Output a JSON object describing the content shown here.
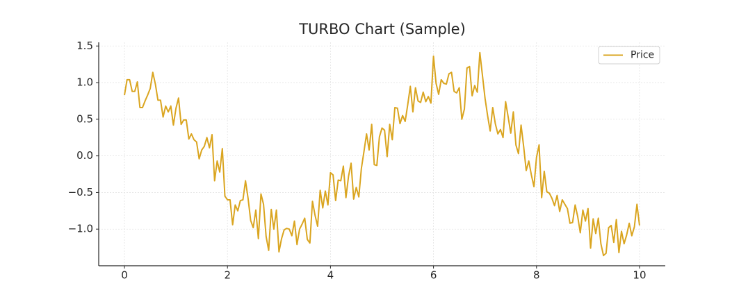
{
  "chart_data": {
    "type": "line",
    "title": "TURBO Chart (Sample)",
    "x": [
      0,
      0.05,
      0.1,
      0.15,
      0.2,
      0.25,
      0.3,
      0.35,
      0.4,
      0.45,
      0.5,
      0.55,
      0.6,
      0.65,
      0.7,
      0.75,
      0.8,
      0.85,
      0.9,
      0.95,
      1,
      1.05,
      1.1,
      1.15,
      1.2,
      1.25,
      1.3,
      1.35,
      1.4,
      1.45,
      1.5,
      1.55,
      1.6,
      1.65,
      1.7,
      1.75,
      1.8,
      1.85,
      1.9,
      1.95,
      2,
      2.05,
      2.1,
      2.15,
      2.2,
      2.25,
      2.3,
      2.35,
      2.4,
      2.45,
      2.5,
      2.55,
      2.6,
      2.65,
      2.7,
      2.75,
      2.8,
      2.85,
      2.9,
      2.95,
      3,
      3.05,
      3.1,
      3.15,
      3.2,
      3.25,
      3.3,
      3.35,
      3.4,
      3.45,
      3.5,
      3.55,
      3.6,
      3.65,
      3.7,
      3.75,
      3.8,
      3.85,
      3.9,
      3.95,
      4,
      4.05,
      4.1,
      4.15,
      4.2,
      4.25,
      4.3,
      4.35,
      4.4,
      4.45,
      4.5,
      4.55,
      4.6,
      4.65,
      4.7,
      4.75,
      4.8,
      4.85,
      4.9,
      4.95,
      5,
      5.05,
      5.1,
      5.15,
      5.2,
      5.25,
      5.3,
      5.35,
      5.4,
      5.45,
      5.5,
      5.55,
      5.6,
      5.65,
      5.7,
      5.75,
      5.8,
      5.85,
      5.9,
      5.95,
      6,
      6.05,
      6.1,
      6.15,
      6.2,
      6.25,
      6.3,
      6.35,
      6.4,
      6.45,
      6.5,
      6.55,
      6.6,
      6.65,
      6.7,
      6.75,
      6.8,
      6.85,
      6.9,
      6.95,
      7,
      7.05,
      7.1,
      7.15,
      7.2,
      7.25,
      7.3,
      7.35,
      7.4,
      7.45,
      7.5,
      7.55,
      7.6,
      7.65,
      7.7,
      7.75,
      7.8,
      7.85,
      7.9,
      7.95,
      8,
      8.05,
      8.1,
      8.15,
      8.2,
      8.25,
      8.3,
      8.35,
      8.4,
      8.45,
      8.5,
      8.55,
      8.6,
      8.65,
      8.7,
      8.75,
      8.8,
      8.85,
      8.9,
      8.95,
      9,
      9.05,
      9.1,
      9.15,
      9.2,
      9.25,
      9.3,
      9.35,
      9.4,
      9.45,
      9.5,
      9.55,
      9.6,
      9.65,
      9.7,
      9.75,
      9.8,
      9.85,
      9.9,
      9.95,
      10
    ],
    "series": [
      {
        "name": "Price",
        "color": "#daa520",
        "values": [
          0.83,
          1.04,
          1.04,
          0.88,
          0.88,
          1.01,
          0.66,
          0.66,
          0.75,
          0.83,
          0.92,
          1.14,
          0.98,
          0.76,
          0.76,
          0.53,
          0.68,
          0.6,
          0.68,
          0.42,
          0.65,
          0.79,
          0.43,
          0.49,
          0.49,
          0.23,
          0.3,
          0.22,
          0.19,
          -0.04,
          0.08,
          0.13,
          0.25,
          0.11,
          0.29,
          -0.34,
          -0.07,
          -0.22,
          0.1,
          -0.55,
          -0.6,
          -0.6,
          -0.94,
          -0.67,
          -0.75,
          -0.61,
          -0.6,
          -0.34,
          -0.58,
          -0.88,
          -0.98,
          -0.74,
          -1.13,
          -0.52,
          -0.66,
          -1.1,
          -1.29,
          -0.73,
          -1.0,
          -0.74,
          -1.31,
          -1.13,
          -1.01,
          -0.99,
          -1.0,
          -1.09,
          -0.89,
          -1.21,
          -1.0,
          -0.93,
          -0.85,
          -1.14,
          -1.19,
          -0.62,
          -0.81,
          -0.96,
          -0.47,
          -0.71,
          -0.48,
          -0.67,
          -0.23,
          -0.26,
          -0.61,
          -0.33,
          -0.34,
          -0.14,
          -0.57,
          -0.28,
          -0.1,
          -0.59,
          -0.43,
          -0.56,
          -0.17,
          0.06,
          0.3,
          0.08,
          0.43,
          -0.12,
          -0.13,
          0.26,
          0.38,
          0.35,
          -0.01,
          0.43,
          0.22,
          0.66,
          0.65,
          0.44,
          0.55,
          0.47,
          0.7,
          0.95,
          0.6,
          0.93,
          0.75,
          0.73,
          0.87,
          0.74,
          0.81,
          0.72,
          1.36,
          0.99,
          0.84,
          1.04,
          0.99,
          0.98,
          1.12,
          1.14,
          0.88,
          0.86,
          0.93,
          0.5,
          0.64,
          1.2,
          1.22,
          0.82,
          0.96,
          0.87,
          1.41,
          1.1,
          0.79,
          0.55,
          0.34,
          0.66,
          0.44,
          0.3,
          0.36,
          0.25,
          0.74,
          0.53,
          0.31,
          0.6,
          0.15,
          0.03,
          0.42,
          0.13,
          -0.2,
          -0.07,
          -0.26,
          -0.42,
          -0.02,
          0.15,
          -0.57,
          -0.21,
          -0.49,
          -0.51,
          -0.58,
          -0.68,
          -0.54,
          -0.76,
          -0.6,
          -0.66,
          -0.72,
          -0.92,
          -0.91,
          -0.67,
          -0.83,
          -1.05,
          -0.74,
          -0.89,
          -0.72,
          -1.26,
          -0.86,
          -1.06,
          -0.85,
          -1.2,
          -1.36,
          -1.33,
          -0.98,
          -0.95,
          -1.18,
          -0.87,
          -1.32,
          -1.03,
          -1.2,
          -1.08,
          -0.92,
          -1.09,
          -0.97,
          -0.66,
          -0.95
        ]
      }
    ],
    "xlim": [
      -0.5,
      10.5
    ],
    "ylim": [
      -1.5,
      1.55
    ],
    "xticks": [
      0,
      2,
      4,
      6,
      8,
      10
    ],
    "yticks": [
      {
        "value": -1.0,
        "label": "−1.0"
      },
      {
        "value": -0.5,
        "label": "−0.5"
      },
      {
        "value": 0.0,
        "label": "0.0"
      },
      {
        "value": 0.5,
        "label": "0.5"
      },
      {
        "value": 1.0,
        "label": "1.0"
      },
      {
        "value": 1.5,
        "label": "1.5"
      }
    ],
    "grid": true,
    "legend": "upper right"
  }
}
